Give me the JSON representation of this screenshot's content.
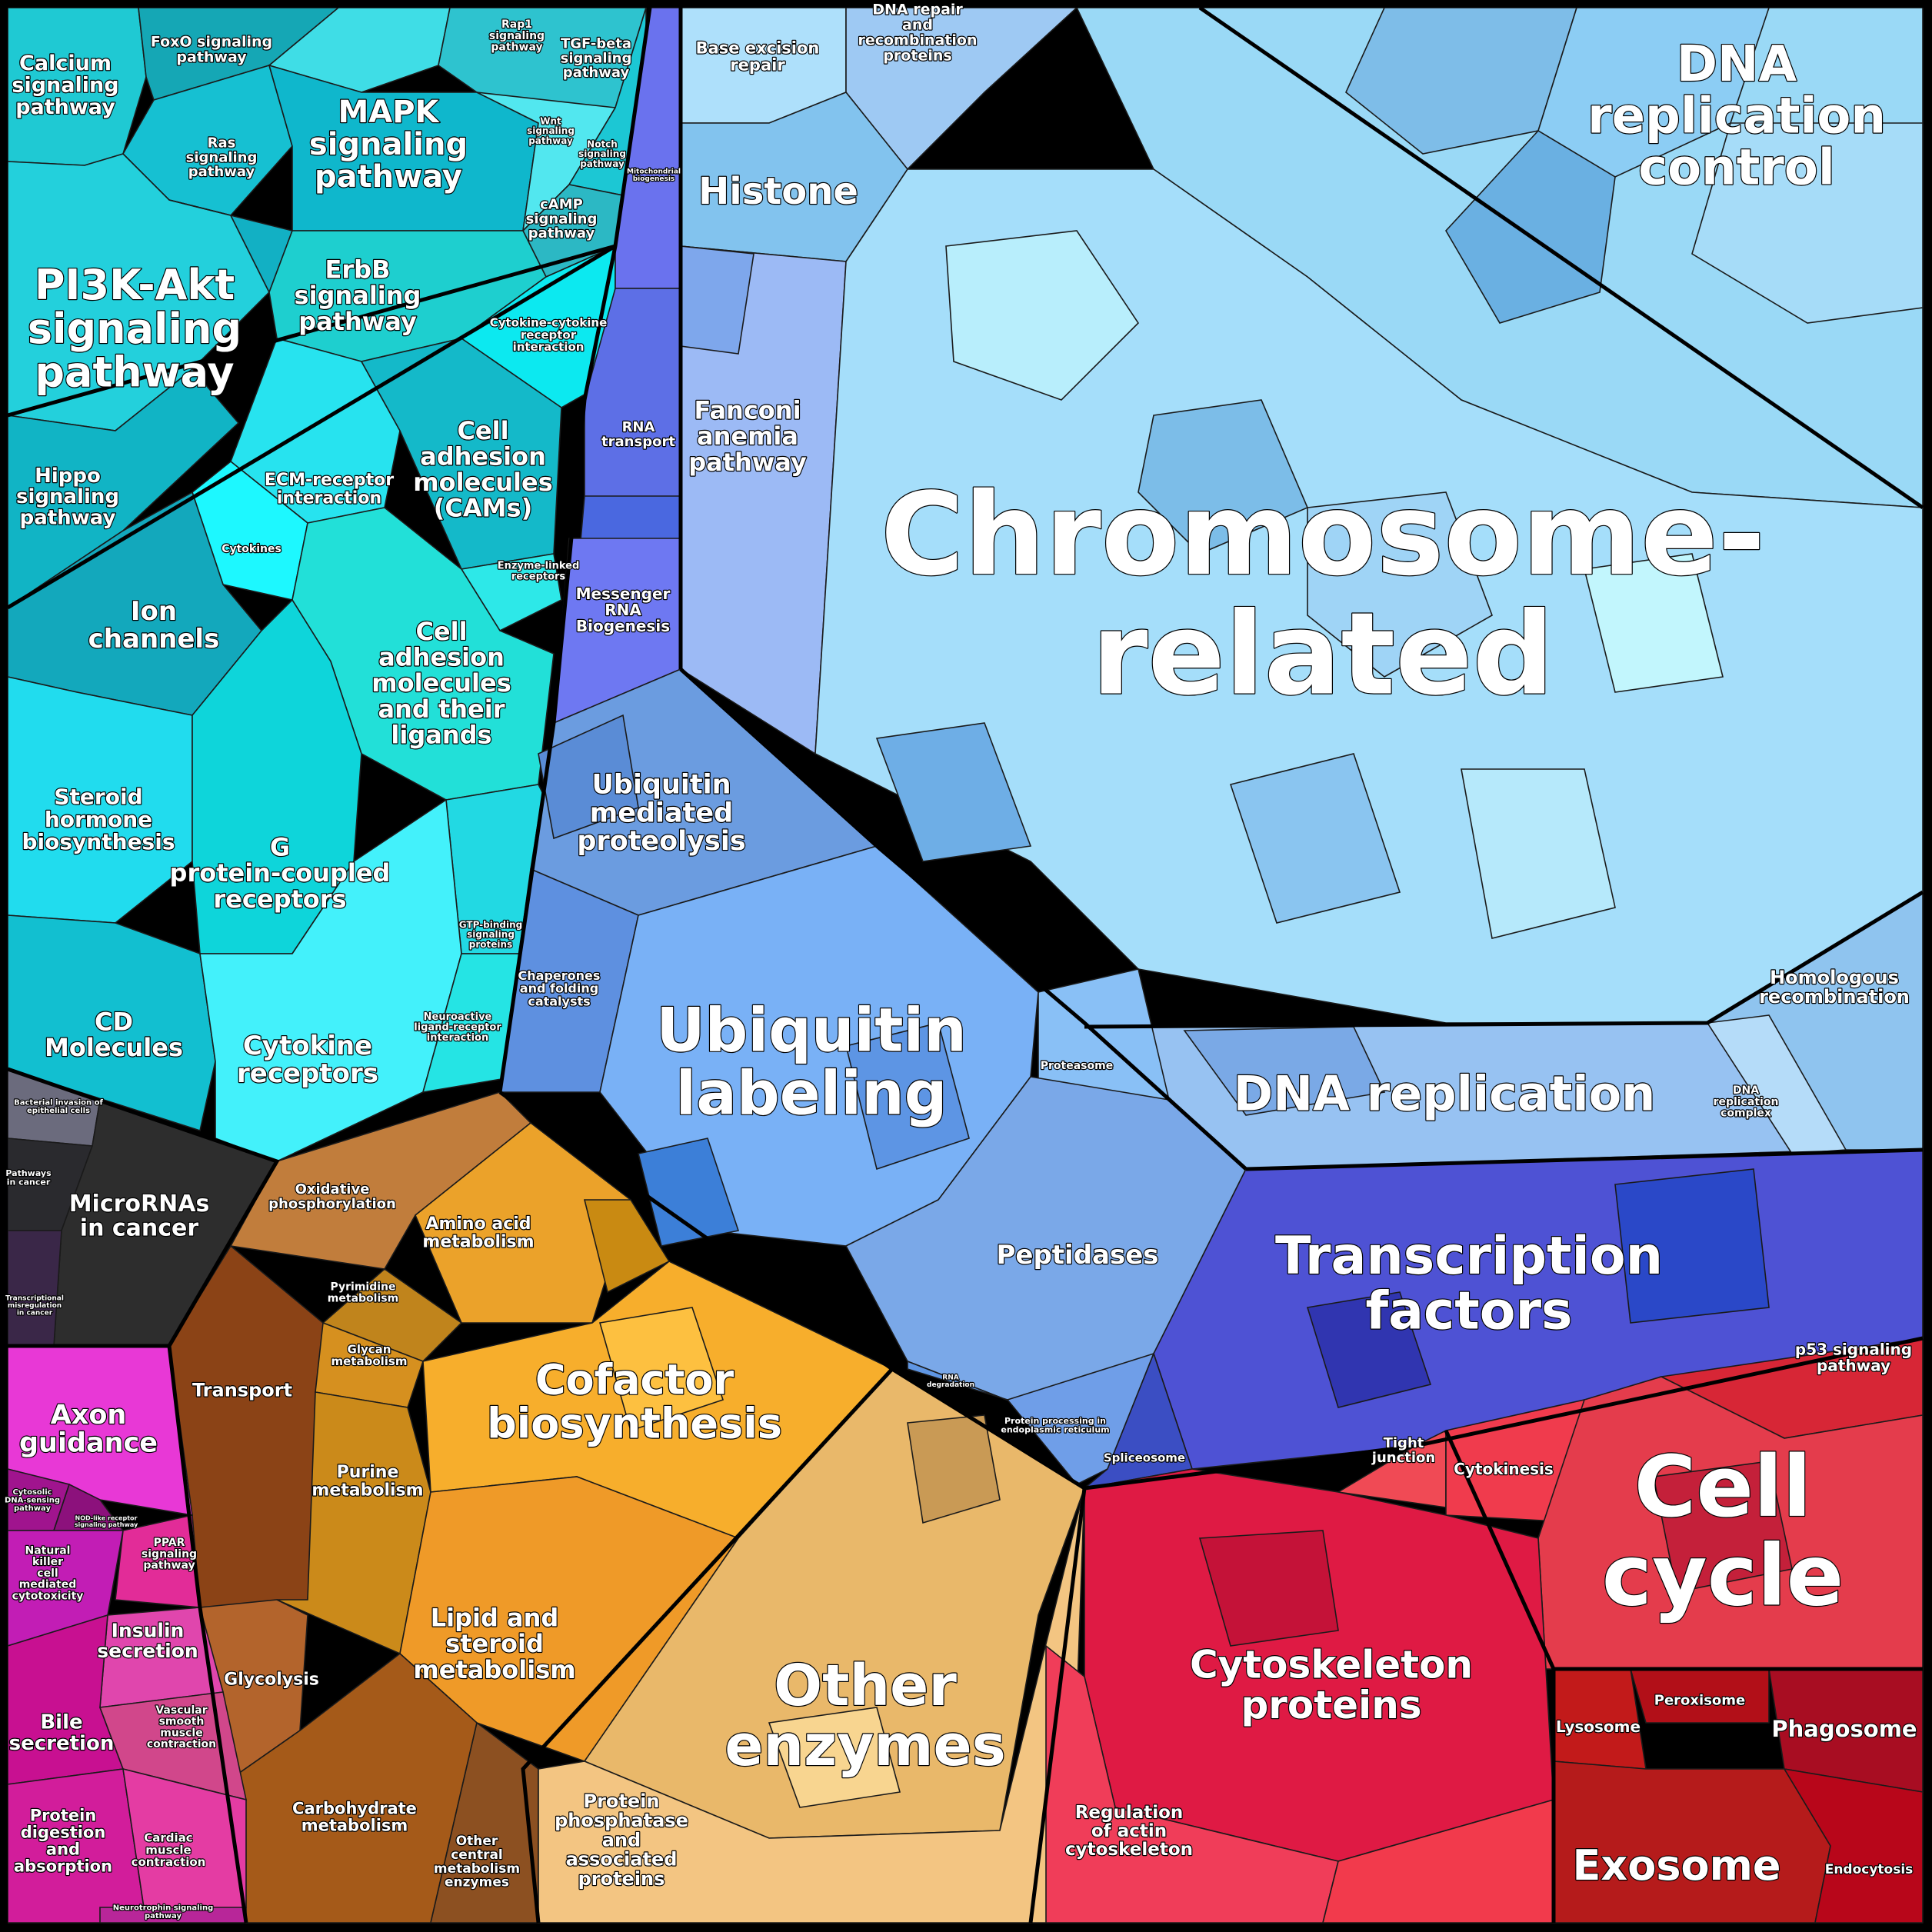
{
  "diagram": {
    "type": "voronoi-treemap",
    "groups": [
      {
        "key": "signaling",
        "color": "#19cfd6",
        "labels": {
          "calcium": "Calcium signaling pathway",
          "foxo": "FoxO signaling pathway",
          "rap1": "Rap1 signaling pathway",
          "tgf": "TGF-beta signaling pathway",
          "mapk": "MAPK signaling pathway",
          "ras": "Ras signaling pathway",
          "wnt": "Wnt signaling pathway",
          "notch": "Notch signaling pathway",
          "camp": "cAMP signaling pathway",
          "pi3k": "PI3K-Akt signaling pathway",
          "erbb": "ErbB signaling pathway",
          "cytokine_rec_int": "Cytokine-cytokine receptor interaction",
          "hippo": "Hippo signaling pathway",
          "ecm": "ECM-receptor interaction",
          "cams": "Cell adhesion molecules (CAMs)",
          "cytokines": "Cytokines",
          "ion": "Ion channels",
          "enzyme_linked": "Enzyme-linked receptors",
          "cam_ligands": "Cell adhesion molecules and their ligands",
          "steroid": "Steroid hormone biosynthesis",
          "gpcr": "G protein-coupled receptors",
          "gtp": "GTP-binding signaling proteins",
          "cd": "CD Molecules",
          "cytokine_receptors": "Cytokine receptors",
          "neuroactive": "Neuroactive ligand-receptor interaction"
        }
      },
      {
        "key": "nucleic",
        "color": "#6f78ee",
        "labels": {
          "mito": "Mitochondrial biogenesis",
          "rna_transport": "RNA transport",
          "mrna": "Messenger RNA Biogenesis"
        }
      },
      {
        "key": "chromosome",
        "color": "#8fc6f2",
        "labels": {
          "base_excision": "Base excision repair",
          "dna_repair": "DNA repair and recombination proteins",
          "histone": "Histone",
          "fanconi": "Fanconi anemia pathway",
          "drc": "DNA replication control",
          "chromosome": "Chromosome-related",
          "homologous": "Homologous recombination",
          "dna_replication": "DNA replication",
          "dna_complex": "DNA replication complex"
        }
      },
      {
        "key": "ubiquitin",
        "color": "#6aa2ee",
        "labels": {
          "umprot": "Ubiquitin mediated proteolysis",
          "chaperones": "Chaperones and folding catalysts",
          "ubiquitin": "Ubiquitin labeling",
          "proteasome": "Proteasome",
          "peptidases": "Peptidases",
          "rna_deg": "RNA degradation",
          "er_processing": "Protein processing in endoplasmic reticulum"
        }
      },
      {
        "key": "transcription",
        "color": "#4a4ad6",
        "labels": {
          "tf": "Transcription factors",
          "spliceosome": "Spliceosome"
        }
      },
      {
        "key": "cancer",
        "color": "#2b2b2b",
        "labels": {
          "bacterial": "Bacterial invasion of epithelial cells",
          "pathways_cancer": "Pathways in cancer",
          "microrna": "MicroRNAs in cancer",
          "misreg": "Transcriptional misregulation in cancer"
        }
      },
      {
        "key": "metabolism",
        "color": "#f3a830",
        "labels": {
          "oxphos": "Oxidative phosphorylation",
          "amino": "Amino acid metabolism",
          "pyrimidine": "Pyrimidine metabolism",
          "transport": "Transport",
          "glycan": "Glycan metabolism",
          "cofactor": "Cofactor biosynthesis",
          "purine": "Purine metabolism",
          "lipid": "Lipid and steroid metabolism",
          "glycolysis": "Glycolysis",
          "carbohydrate": "Carbohydrate metabolism",
          "other_central": "Other central metabolism enzymes"
        }
      },
      {
        "key": "enzymes",
        "color": "#efc07a",
        "labels": {
          "other_enzymes": "Other enzymes",
          "phosphatase": "Protein phosphatase and associated proteins"
        }
      },
      {
        "key": "organismal",
        "color": "#e23ac4",
        "labels": {
          "axon": "Axon guidance",
          "cytosolic_dna": "Cytosolic DNA-sensing pathway",
          "nod": "NOD-like receptor signaling pathway",
          "nk": "Natural killer cell mediated cytotoxicity",
          "ppar": "PPAR signaling pathway",
          "insulin": "Insulin secretion",
          "bile": "Bile secretion",
          "vascular": "Vascular smooth muscle contraction",
          "protein_digestion": "Protein digestion and absorption",
          "cardiac": "Cardiac muscle contraction",
          "neurotrophin": "Neurotrophin signaling pathway"
        }
      },
      {
        "key": "cellular",
        "color": "#e83a4e",
        "labels": {
          "p53": "p53 signaling pathway",
          "tight": "Tight junction",
          "cytokinesis": "Cytokinesis",
          "cell_cycle": "Cell cycle",
          "cytoskeleton": "Cytoskeleton proteins",
          "lysosome": "Lysosome",
          "peroxisome": "Peroxisome",
          "phagosome": "Phagosome",
          "actin": "Regulation of actin cytoskeleton",
          "exosome": "Exosome",
          "endocytosis": "Endocytosis"
        }
      }
    ]
  }
}
